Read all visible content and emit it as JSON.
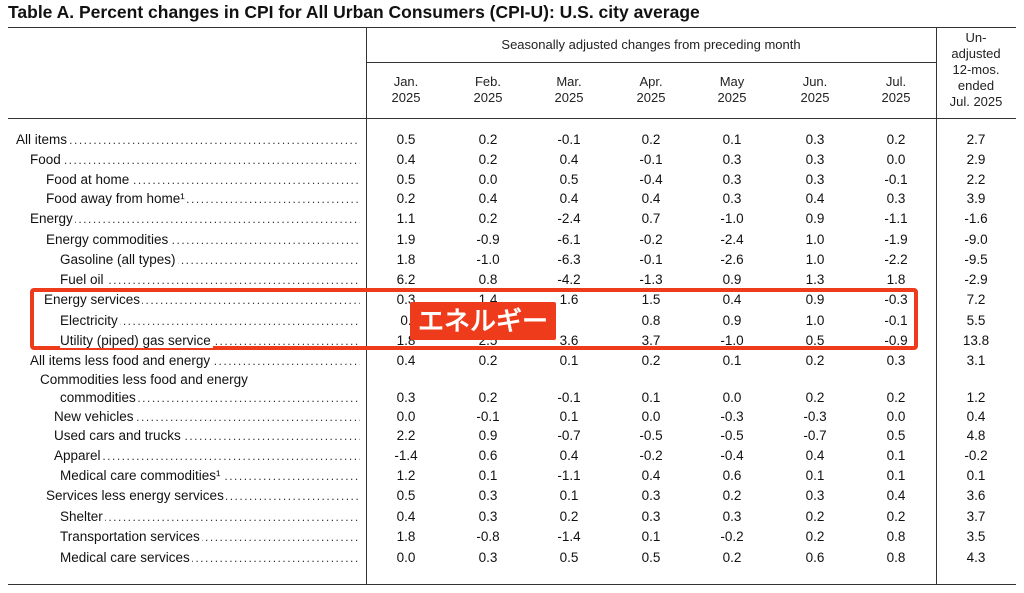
{
  "title": "Table A. Percent changes in CPI for All Urban Consumers (CPI-U): U.S. city average",
  "header": {
    "group_label": "Seasonally adjusted changes from preceding month",
    "months": [
      {
        "month": "Jan.",
        "year": "2025"
      },
      {
        "month": "Feb.",
        "year": "2025"
      },
      {
        "month": "Mar.",
        "year": "2025"
      },
      {
        "month": "Apr.",
        "year": "2025"
      },
      {
        "month": "May",
        "year": "2025"
      },
      {
        "month": "Jun.",
        "year": "2025"
      },
      {
        "month": "Jul.",
        "year": "2025"
      }
    ],
    "unadjusted_label": "Un-\nadjusted\n12-mos.\nended\nJul. 2025"
  },
  "rows": [
    {
      "label": "All items",
      "values": [
        "0.5",
        "0.2",
        "-0.1",
        "0.2",
        "0.1",
        "0.3",
        "0.2",
        "2.7"
      ]
    },
    {
      "label": "Food",
      "values": [
        "0.4",
        "0.2",
        "0.4",
        "-0.1",
        "0.3",
        "0.3",
        "0.0",
        "2.9"
      ]
    },
    {
      "label": "Food at home",
      "values": [
        "0.5",
        "0.0",
        "0.5",
        "-0.4",
        "0.3",
        "0.3",
        "-0.1",
        "2.2"
      ]
    },
    {
      "label": "Food away from home¹",
      "values": [
        "0.2",
        "0.4",
        "0.4",
        "0.4",
        "0.3",
        "0.4",
        "0.3",
        "3.9"
      ]
    },
    {
      "label": "Energy",
      "values": [
        "1.1",
        "0.2",
        "-2.4",
        "0.7",
        "-1.0",
        "0.9",
        "-1.1",
        "-1.6"
      ]
    },
    {
      "label": "Energy commodities",
      "values": [
        "1.9",
        "-0.9",
        "-6.1",
        "-0.2",
        "-2.4",
        "1.0",
        "-1.9",
        "-9.0"
      ]
    },
    {
      "label": "Gasoline (all types)",
      "values": [
        "1.8",
        "-1.0",
        "-6.3",
        "-0.1",
        "-2.6",
        "1.0",
        "-2.2",
        "-9.5"
      ]
    },
    {
      "label": "Fuel oil",
      "values": [
        "6.2",
        "0.8",
        "-4.2",
        "-1.3",
        "0.9",
        "1.3",
        "1.8",
        "-2.9"
      ]
    },
    {
      "label": "Energy services",
      "values": [
        "0.3",
        "1.4",
        "1.6",
        "1.5",
        "0.4",
        "0.9",
        "-0.3",
        "7.2"
      ]
    },
    {
      "label": "Electricity",
      "values": [
        "0.",
        "",
        "",
        "0.8",
        "0.9",
        "1.0",
        "-0.1",
        "5.5"
      ]
    },
    {
      "label": "Utility (piped) gas service",
      "values": [
        "1.8",
        "2.5",
        "3.6",
        "3.7",
        "-1.0",
        "0.5",
        "-0.9",
        "13.8"
      ]
    },
    {
      "label": "All items less food and energy",
      "values": [
        "0.4",
        "0.2",
        "0.1",
        "0.2",
        "0.1",
        "0.2",
        "0.3",
        "3.1"
      ]
    },
    {
      "label": "Commodities less food and energy",
      "values": [
        "",
        "",
        "",
        "",
        "",
        "",
        "",
        ""
      ]
    },
    {
      "label": "commodities",
      "values": [
        "0.3",
        "0.2",
        "-0.1",
        "0.1",
        "0.0",
        "0.2",
        "0.2",
        "1.2"
      ]
    },
    {
      "label": "New vehicles",
      "values": [
        "0.0",
        "-0.1",
        "0.1",
        "0.0",
        "-0.3",
        "-0.3",
        "0.0",
        "0.4"
      ]
    },
    {
      "label": "Used cars and trucks",
      "values": [
        "2.2",
        "0.9",
        "-0.7",
        "-0.5",
        "-0.5",
        "-0.7",
        "0.5",
        "4.8"
      ]
    },
    {
      "label": "Apparel",
      "values": [
        "-1.4",
        "0.6",
        "0.4",
        "-0.2",
        "-0.4",
        "0.4",
        "0.1",
        "-0.2"
      ]
    },
    {
      "label": "Medical care commodities¹",
      "values": [
        "1.2",
        "0.1",
        "-1.1",
        "0.4",
        "0.6",
        "0.1",
        "0.1",
        "0.1"
      ]
    },
    {
      "label": "Services less energy services",
      "values": [
        "0.5",
        "0.3",
        "0.1",
        "0.3",
        "0.2",
        "0.3",
        "0.4",
        "3.6"
      ]
    },
    {
      "label": "Shelter",
      "values": [
        "0.4",
        "0.3",
        "0.2",
        "0.3",
        "0.3",
        "0.2",
        "0.2",
        "3.7"
      ]
    },
    {
      "label": "Transportation services",
      "values": [
        "1.8",
        "-0.8",
        "-1.4",
        "0.1",
        "-0.2",
        "0.2",
        "0.8",
        "3.5"
      ]
    },
    {
      "label": "Medical care services",
      "values": [
        "0.0",
        "0.3",
        "0.5",
        "0.5",
        "0.2",
        "0.6",
        "0.8",
        "4.3"
      ]
    }
  ],
  "annotation": {
    "label": "エネルギー",
    "color": "#ee3b1b"
  }
}
